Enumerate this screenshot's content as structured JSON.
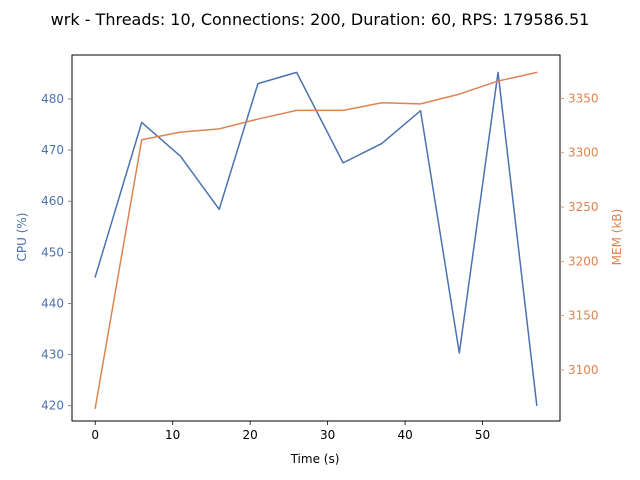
{
  "chart_data": {
    "type": "line",
    "title": "wrk - Threads: 10, Connections: 200, Duration: 60, RPS: 179586.51",
    "xlabel": "Time (s)",
    "xlim": [
      -3,
      60
    ],
    "xticks": [
      0,
      10,
      20,
      30,
      40,
      50
    ],
    "y_left": {
      "label": "CPU (%)",
      "color": "#4c72b0",
      "lim": [
        417,
        488.6
      ],
      "ticks": [
        420,
        430,
        440,
        450,
        460,
        470,
        480
      ]
    },
    "y_right": {
      "label": "MEM (kB)",
      "color": "#dd8452",
      "lim": [
        3053,
        3390
      ],
      "ticks": [
        3100,
        3150,
        3200,
        3250,
        3300,
        3350
      ]
    },
    "x": [
      0,
      6,
      11,
      16,
      21,
      26,
      32,
      37,
      42,
      47,
      52,
      57
    ],
    "series": [
      {
        "name": "CPU (%)",
        "axis": "left",
        "color": "#4c72b0",
        "values": [
          445.2,
          475.4,
          468.8,
          458.4,
          483.0,
          485.2,
          467.5,
          471.3,
          477.7,
          430.3,
          485.2,
          420.1
        ]
      },
      {
        "name": "MEM (kB)",
        "axis": "right",
        "color": "#dd8452",
        "values": [
          3065,
          3312,
          3319,
          3322,
          3331,
          3339,
          3339,
          3346,
          3345,
          3354,
          3366,
          3374
        ]
      }
    ],
    "grid": false,
    "legend": "none"
  }
}
